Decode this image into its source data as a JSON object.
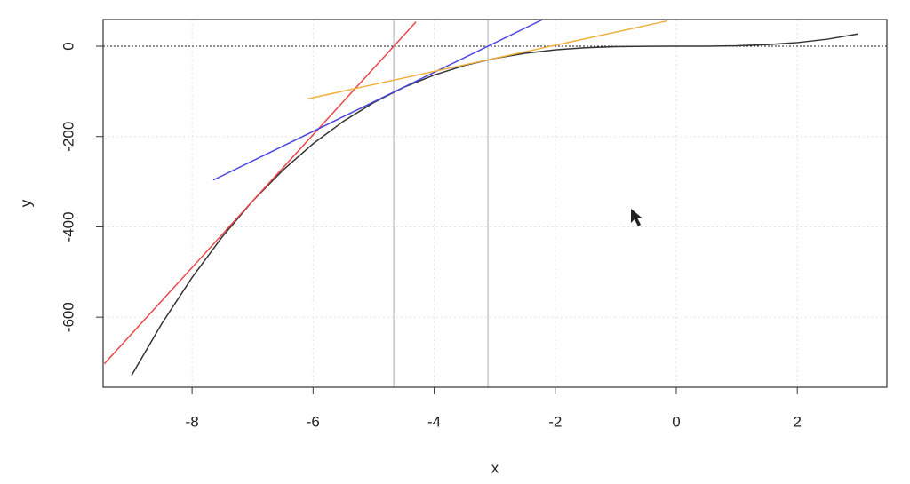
{
  "chart_data": {
    "type": "line",
    "xlabel": "x",
    "ylabel": "y",
    "xlim": [
      -9.47,
      3.48
    ],
    "ylim": [
      -755,
      59
    ],
    "xticks": [
      -8,
      -6,
      -4,
      -2,
      0,
      2
    ],
    "yticks": [
      -600,
      -400,
      -200,
      0
    ],
    "grid": true,
    "hline": 0,
    "vlines": [
      -4.667,
      -3.111
    ],
    "vline_color": "#c8c8c8",
    "series": [
      {
        "color": "#333333",
        "x": [
          -9,
          -8.5,
          -8,
          -7.5,
          -7,
          -6.5,
          -6,
          -5.5,
          -5,
          -4.5,
          -4,
          -3.5,
          -3,
          -2.5,
          -2,
          -1.5,
          -1,
          -0.5,
          0,
          0.5,
          1,
          1.5,
          2,
          2.5,
          3
        ],
        "values": [
          -729,
          -614.125,
          -512,
          -421.875,
          -343,
          -274.625,
          -216,
          -166.375,
          -125,
          -91.125,
          -64,
          -42.875,
          -27,
          -15.625,
          -8,
          -3.375,
          -1,
          -0.125,
          0,
          0.125,
          1,
          3.375,
          8,
          15.625,
          27
        ]
      },
      {
        "color": "#e8474a",
        "x": [
          -9.45,
          -4.3
        ],
        "values": [
          -703.2,
          53.9
        ]
      },
      {
        "color": "#4a45e0",
        "x": [
          -7.65,
          -2.2
        ],
        "values": [
          -296.4,
          59.5
        ]
      },
      {
        "color": "#f0b040",
        "x": [
          -6.1,
          -0.15
        ],
        "values": [
          -116.9,
          55.9
        ]
      }
    ]
  }
}
